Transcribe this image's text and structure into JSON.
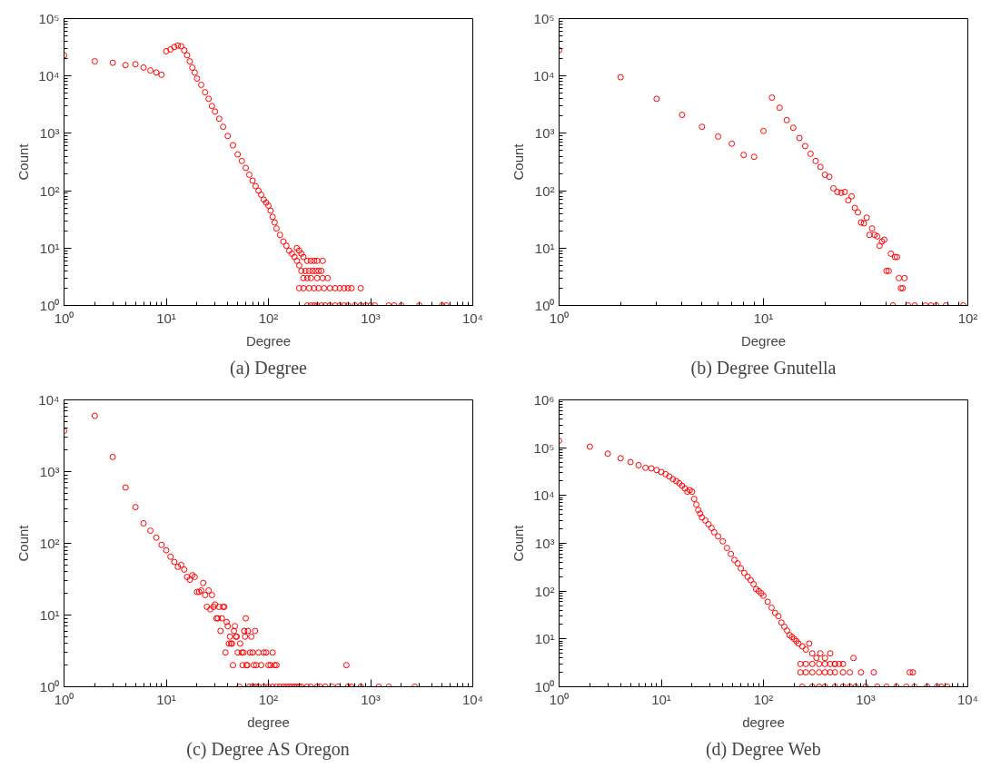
{
  "chart_data": [
    {
      "type": "scatter",
      "title": "(a) Degree",
      "xlabel": "Degree",
      "ylabel": "Count",
      "log": "xy",
      "marker": "circle",
      "grid": false,
      "xlim": [
        1,
        10000
      ],
      "ylim": [
        1,
        100000
      ],
      "xticks": [
        {
          "value": 1,
          "label": "10⁰"
        },
        {
          "value": 10,
          "label": "10¹"
        },
        {
          "value": 100,
          "label": "10²"
        },
        {
          "value": 1000,
          "label": "10³"
        },
        {
          "value": 10000,
          "label": "10⁴"
        }
      ],
      "yticks": [
        {
          "value": 1,
          "label": "10⁰"
        },
        {
          "value": 10,
          "label": "10¹"
        },
        {
          "value": 100,
          "label": "10²"
        },
        {
          "value": 1000,
          "label": "10³"
        },
        {
          "value": 10000,
          "label": "10⁴"
        },
        {
          "value": 100000,
          "label": "10⁵"
        }
      ],
      "series": [
        {
          "color": "#ff0000",
          "x": [
            1,
            2,
            3,
            4,
            5,
            6,
            7,
            8,
            9,
            10,
            11,
            12,
            13,
            14,
            15,
            16,
            17,
            18,
            19,
            20,
            22,
            24,
            26,
            28,
            30,
            33,
            36,
            40,
            45,
            50,
            55,
            60,
            65,
            70,
            75,
            80,
            85,
            90,
            95,
            100,
            105,
            110,
            115,
            120,
            130,
            140,
            150,
            160,
            170,
            180,
            190,
            200,
            190,
            200,
            210,
            220,
            240,
            260,
            280,
            300,
            340,
            210,
            230,
            250,
            270,
            290,
            310,
            330,
            220,
            240,
            260,
            300,
            340,
            380,
            200,
            220,
            250,
            280,
            310,
            350,
            400,
            450,
            500,
            550,
            600,
            650,
            800,
            240,
            260,
            280,
            300,
            330,
            360,
            400,
            450,
            500,
            550,
            600,
            700,
            800,
            900,
            1000,
            1100,
            1500,
            1700,
            2000,
            3000,
            5000,
            5500
          ],
          "values": [
            23000,
            18000,
            17000,
            15500,
            16000,
            14000,
            12500,
            11500,
            10500,
            27000,
            29000,
            32000,
            34000,
            33000,
            28000,
            23000,
            18000,
            14000,
            11500,
            9000,
            7000,
            5200,
            4000,
            3000,
            2400,
            1800,
            1300,
            900,
            620,
            430,
            330,
            250,
            190,
            150,
            120,
            100,
            85,
            70,
            62,
            55,
            45,
            35,
            28,
            22,
            17,
            13,
            11,
            9,
            8,
            7,
            6,
            5,
            10,
            9,
            8,
            7,
            6,
            6,
            6,
            6,
            6,
            4,
            4,
            4,
            4,
            4,
            4,
            4,
            3,
            3,
            3,
            3,
            3,
            3,
            2,
            2,
            2,
            2,
            2,
            2,
            2,
            2,
            2,
            2,
            2,
            2,
            2,
            1,
            1,
            1,
            1,
            1,
            1,
            1,
            1,
            1,
            1,
            1,
            1,
            1,
            1,
            1,
            1,
            1,
            1,
            1,
            1,
            1,
            1
          ]
        }
      ]
    },
    {
      "type": "scatter",
      "title": "(b) Degree Gnutella",
      "xlabel": "Degree",
      "ylabel": "Count",
      "log": "xy",
      "marker": "circle",
      "grid": false,
      "xlim": [
        1,
        100
      ],
      "ylim": [
        1,
        100000
      ],
      "xticks": [
        {
          "value": 1,
          "label": "10⁰"
        },
        {
          "value": 10,
          "label": "10¹"
        },
        {
          "value": 100,
          "label": "10²"
        }
      ],
      "yticks": [
        {
          "value": 1,
          "label": "10⁰"
        },
        {
          "value": 10,
          "label": "10¹"
        },
        {
          "value": 100,
          "label": "10²"
        },
        {
          "value": 1000,
          "label": "10³"
        },
        {
          "value": 10000,
          "label": "10⁴"
        },
        {
          "value": 100000,
          "label": "10⁵"
        }
      ],
      "series": [
        {
          "color": "#ff0000",
          "x": [
            1,
            2,
            3,
            4,
            5,
            6,
            7,
            8,
            9,
            10,
            11,
            12,
            13,
            14,
            15,
            16,
            17,
            18,
            19,
            20,
            21,
            22,
            23,
            24,
            25,
            26,
            27,
            28,
            29,
            30,
            31,
            32,
            33,
            34,
            35,
            36,
            37,
            38,
            39,
            40,
            41,
            42,
            43,
            44,
            45,
            46,
            47,
            48,
            49,
            51,
            55,
            62,
            66,
            70,
            78,
            95
          ],
          "values": [
            28000,
            9500,
            4000,
            2100,
            1300,
            880,
            660,
            420,
            390,
            1100,
            4200,
            2800,
            1700,
            1250,
            830,
            600,
            440,
            330,
            260,
            190,
            175,
            110,
            95,
            92,
            95,
            68,
            80,
            50,
            42,
            28,
            27,
            34,
            17,
            22,
            17,
            16,
            11,
            13,
            14,
            4,
            4,
            8,
            1,
            7,
            7,
            3,
            2,
            2,
            3,
            1,
            1,
            1,
            1,
            1,
            1,
            1
          ]
        }
      ]
    },
    {
      "type": "scatter",
      "title": "(c) Degree AS Oregon",
      "xlabel": "degree",
      "ylabel": "Count",
      "log": "xy",
      "marker": "circle",
      "grid": false,
      "xlim": [
        1,
        10000
      ],
      "ylim": [
        1,
        10000
      ],
      "xticks": [
        {
          "value": 1,
          "label": "10⁰"
        },
        {
          "value": 10,
          "label": "10¹"
        },
        {
          "value": 100,
          "label": "10²"
        },
        {
          "value": 1000,
          "label": "10³"
        },
        {
          "value": 10000,
          "label": "10⁴"
        }
      ],
      "yticks": [
        {
          "value": 1,
          "label": "10⁰"
        },
        {
          "value": 10,
          "label": "10¹"
        },
        {
          "value": 100,
          "label": "10²"
        },
        {
          "value": 1000,
          "label": "10³"
        },
        {
          "value": 10000,
          "label": "10⁴"
        }
      ],
      "series": [
        {
          "color": "#ff0000",
          "x": [
            1,
            2,
            3,
            4,
            5,
            6,
            7,
            8,
            9,
            10,
            11,
            12,
            13,
            14,
            15,
            16,
            17,
            18,
            19,
            20,
            21,
            22,
            23,
            24,
            25,
            26,
            27,
            28,
            29,
            30,
            31,
            32,
            33,
            34,
            35,
            36,
            37,
            38,
            39,
            40,
            41,
            42,
            43,
            44,
            45,
            46,
            47,
            48,
            49,
            50,
            53,
            55,
            56,
            57,
            58,
            59,
            60,
            61,
            62,
            63,
            66,
            68,
            70,
            72,
            74,
            76,
            80,
            85,
            90,
            95,
            100,
            105,
            110,
            115,
            120,
            52,
            65,
            70,
            75,
            80,
            90,
            100,
            110,
            120,
            130,
            140,
            150,
            160,
            170,
            180,
            190,
            200,
            210,
            240,
            260,
            300,
            320,
            360,
            420,
            480,
            600,
            650,
            800,
            1200,
            1500,
            2700,
            580
          ],
          "values": [
            3700,
            6000,
            1600,
            600,
            320,
            190,
            150,
            120,
            95,
            80,
            65,
            55,
            47,
            50,
            43,
            34,
            31,
            36,
            34,
            21,
            21,
            22,
            28,
            19,
            13,
            22,
            12,
            19,
            13,
            14,
            9,
            9,
            13,
            6,
            9,
            13,
            13,
            3,
            8,
            7,
            4,
            5,
            4,
            4,
            2,
            6,
            7,
            5,
            5,
            3,
            4,
            3,
            2,
            3,
            6,
            5,
            9,
            2,
            2,
            6,
            3,
            5,
            3,
            2,
            6,
            2,
            3,
            2,
            3,
            3,
            2,
            2,
            3,
            2,
            2,
            1,
            1,
            1,
            1,
            1,
            1,
            1,
            1,
            1,
            1,
            1,
            1,
            1,
            1,
            1,
            1,
            1,
            1,
            1,
            1,
            1,
            1,
            1,
            1,
            1,
            1,
            1,
            1,
            1,
            1,
            1,
            2
          ]
        }
      ]
    },
    {
      "type": "scatter",
      "title": "(d) Degree Web",
      "xlabel": "degree",
      "ylabel": "Count",
      "log": "xy",
      "marker": "circle",
      "grid": false,
      "xlim": [
        1,
        10000
      ],
      "ylim": [
        1,
        1000000
      ],
      "xticks": [
        {
          "value": 1,
          "label": "10⁰"
        },
        {
          "value": 10,
          "label": "10¹"
        },
        {
          "value": 100,
          "label": "10²"
        },
        {
          "value": 1000,
          "label": "10³"
        },
        {
          "value": 10000,
          "label": "10⁴"
        }
      ],
      "yticks": [
        {
          "value": 1,
          "label": "10⁰"
        },
        {
          "value": 10,
          "label": "10¹"
        },
        {
          "value": 100,
          "label": "10²"
        },
        {
          "value": 1000,
          "label": "10³"
        },
        {
          "value": 10000,
          "label": "10⁴"
        },
        {
          "value": 100000,
          "label": "10⁵"
        },
        {
          "value": 1000000,
          "label": "10⁶"
        }
      ],
      "series": [
        {
          "color": "#ff0000",
          "x": [
            1,
            2,
            3,
            4,
            5,
            6,
            7,
            8,
            9,
            10,
            11,
            12,
            13,
            14,
            15,
            16,
            17,
            18,
            19,
            20,
            21,
            22,
            23,
            24,
            25,
            27,
            29,
            31,
            33,
            36,
            40,
            44,
            48,
            52,
            56,
            60,
            65,
            70,
            75,
            80,
            85,
            90,
            95,
            100,
            110,
            120,
            130,
            140,
            150,
            160,
            170,
            180,
            190,
            200,
            210,
            220,
            240,
            260,
            280,
            300,
            330,
            360,
            400,
            450,
            500,
            760,
            230,
            260,
            300,
            350,
            400,
            450,
            500,
            550,
            600,
            230,
            260,
            300,
            350,
            400,
            450,
            500,
            600,
            700,
            900,
            1200,
            2700,
            2900,
            240,
            300,
            350,
            400,
            500,
            600,
            700,
            800,
            1000,
            1300,
            1600,
            2000,
            2500,
            3000,
            4000,
            5000,
            5500,
            6300
          ],
          "values": [
            140000,
            105000,
            75000,
            60000,
            50000,
            43000,
            38000,
            37000,
            34000,
            31000,
            28000,
            25000,
            22000,
            20000,
            18000,
            16000,
            14000,
            12000,
            13000,
            12000,
            8500,
            6500,
            5000,
            4200,
            3500,
            3000,
            2500,
            2100,
            1700,
            1400,
            1100,
            800,
            600,
            450,
            380,
            300,
            240,
            200,
            170,
            140,
            110,
            100,
            90,
            80,
            60,
            45,
            35,
            30,
            22,
            18,
            15,
            12,
            11,
            10,
            9,
            8,
            7,
            6,
            8,
            5,
            4,
            5,
            4,
            5,
            3,
            4,
            3,
            3,
            3,
            3,
            3,
            3,
            3,
            3,
            3,
            2,
            2,
            2,
            2,
            2,
            2,
            2,
            2,
            2,
            2,
            2,
            2,
            2,
            1,
            1,
            1,
            1,
            1,
            1,
            1,
            1,
            1,
            1,
            1,
            1,
            1,
            1,
            1,
            1,
            1,
            1
          ]
        }
      ]
    }
  ]
}
